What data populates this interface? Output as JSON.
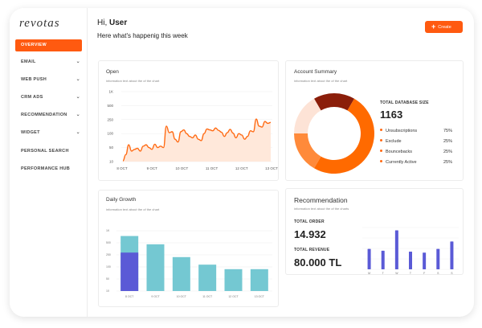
{
  "app": {
    "logo": "revotas"
  },
  "sidebar": {
    "active": "OVERVIEW",
    "items": [
      {
        "label": "EMAIL",
        "chevron": true
      },
      {
        "label": "WEB PUSH",
        "chevron": true
      },
      {
        "label": "CRM ADS",
        "chevron": true
      },
      {
        "label": "RECOMMENDATION",
        "chevron": true
      },
      {
        "label": "WIDGET",
        "chevron": true
      },
      {
        "label": "PERSONAL SEARCH",
        "chevron": false
      },
      {
        "label": "PERFORMANCE HUB",
        "chevron": false
      }
    ]
  },
  "header": {
    "greeting": "Hi,",
    "user": "User",
    "subtitle": "Here what's happenig this week",
    "create_label": "Create"
  },
  "colors": {
    "accent": "#ff5a10",
    "teal": "#74c8d2",
    "purple": "#5a5ad6"
  },
  "open_card": {
    "title": "Open",
    "sub": "information text about the of the chart",
    "chart_data": {
      "type": "area",
      "x_ticks": [
        "8 OCT",
        "9 OCT",
        "10 OCT",
        "11 OCT",
        "12 OCT",
        "13 OCT"
      ],
      "y_ticks": [
        "1K",
        "500",
        "250",
        "100",
        "50",
        "10"
      ],
      "values": [
        12,
        30,
        60,
        40,
        45,
        48,
        40,
        55,
        60,
        50,
        45,
        62,
        50,
        55,
        50,
        180,
        110,
        120,
        80,
        70,
        120,
        140,
        100,
        90,
        85,
        95,
        80,
        75,
        100,
        150,
        140,
        130,
        160,
        135,
        115,
        90,
        110,
        145,
        105,
        85,
        100,
        95,
        80,
        90,
        130,
        120,
        260,
        180,
        170,
        230,
        210,
        220
      ]
    }
  },
  "account_card": {
    "title": "Account Summary",
    "sub": "information text about the of the chart",
    "total_label": "TOTAL DATABASE SIZE",
    "total_value": "1163",
    "chart_data": {
      "type": "pie",
      "slices": [
        {
          "name": "Unsubscriptions",
          "pct_label": "75%",
          "value": 75,
          "color": "#ff6a00"
        },
        {
          "name": "Exclude",
          "pct_label": "25%",
          "value": 25,
          "color": "#ff8a3a"
        },
        {
          "name": "Bouncebacks",
          "pct_label": "25%",
          "value": 25,
          "color": "#fde3d6"
        },
        {
          "name": "Currently Active",
          "pct_label": "25%",
          "value": 25,
          "color": "#8b1e0a"
        }
      ]
    }
  },
  "growth_card": {
    "title": "Daily Growth",
    "sub": "information text about the of the chart",
    "chart_data": {
      "type": "bar",
      "categories": [
        "8 OCT",
        "9 OCT",
        "10 OCT",
        "11 OCT",
        "12 OCT",
        "13 OCT"
      ],
      "y_ticks": [
        "1K",
        "500",
        "250",
        "100",
        "50",
        "10"
      ],
      "series": [
        {
          "values": [
            365,
            310,
            225,
            175,
            145,
            145
          ]
        },
        {
          "values": [
            255,
            0,
            0,
            0,
            0,
            0
          ]
        }
      ],
      "ylim": [
        0,
        400
      ]
    }
  },
  "rec_card": {
    "title": "Recommendation",
    "sub": "information text about the of the charts",
    "order_label": "TOTAL ORDER",
    "order_value": "14.932",
    "revenue_label": "TOTAL REVENUE",
    "revenue_value": "80.000 TL",
    "chart_data": {
      "type": "bar",
      "categories": [
        "M",
        "T",
        "W",
        "T",
        "F",
        "S",
        "S"
      ],
      "values": [
        22,
        20,
        42,
        19,
        18,
        22,
        30
      ],
      "ylim": [
        0,
        45
      ]
    }
  }
}
